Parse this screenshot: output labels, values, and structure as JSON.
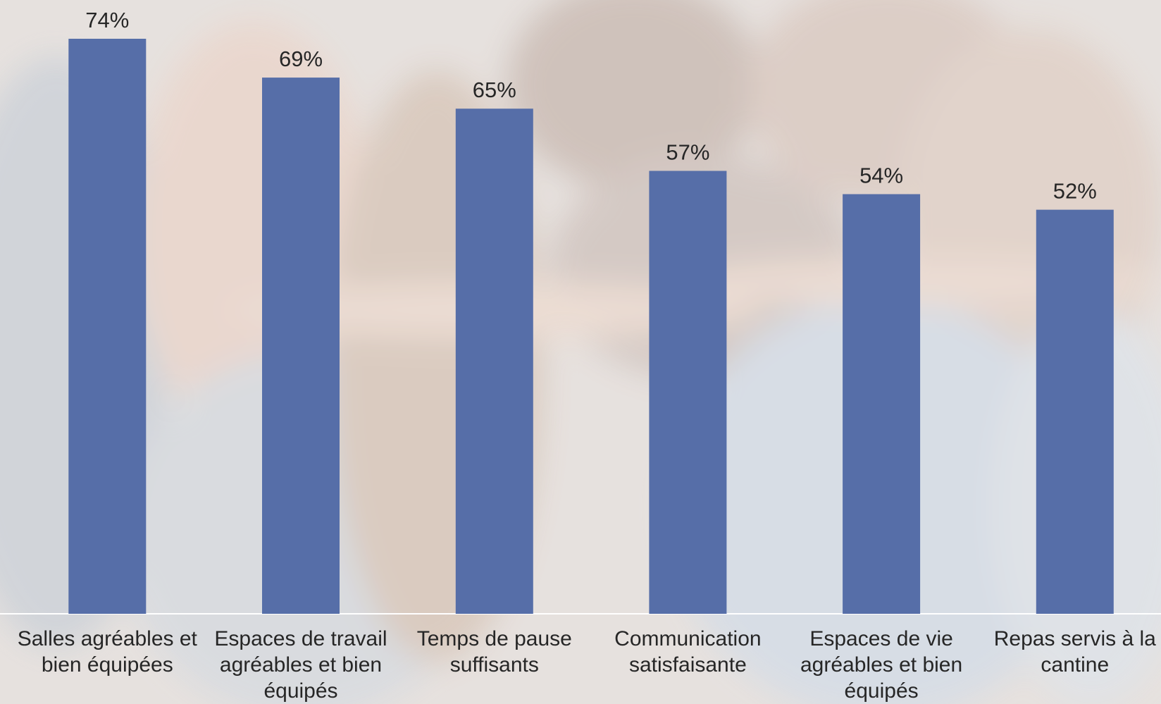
{
  "chart_data": {
    "type": "bar",
    "categories": [
      "Salles agréables et bien équipées",
      "Espaces de travail agréables et bien équipés",
      "Temps de pause suffisants",
      "Communication satisfaisante",
      "Espaces de vie agréables et bien équipés",
      "Repas servis à la cantine"
    ],
    "values": [
      74,
      69,
      65,
      57,
      54,
      52
    ],
    "value_labels": [
      "74%",
      "69%",
      "65%",
      "57%",
      "54%",
      "52%"
    ],
    "title": "",
    "xlabel": "",
    "ylabel": "",
    "ylim": [
      0,
      80
    ],
    "grid": false,
    "legend": "none",
    "bar_color": "#566ea8",
    "label_color": "#262626",
    "axis_color": "#ffffff"
  }
}
